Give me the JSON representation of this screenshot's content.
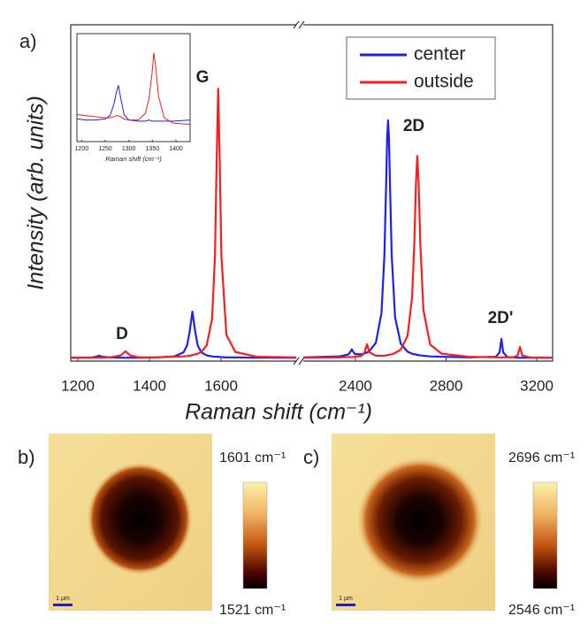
{
  "panel_label": "a)",
  "chart_data": [
    {
      "type": "line",
      "ylabel": "Intensity (arb. units)",
      "xlabel": "Raman shift (cm⁻¹)",
      "xlim": [
        [
          1180,
          1810
        ],
        [
          2170,
          3270
        ]
      ],
      "xticks": [
        1200,
        1400,
        1600,
        2400,
        2800,
        3200
      ],
      "ylim": [
        0,
        100
      ],
      "legend": "top-right",
      "annotations": [
        "D",
        "G",
        "2D",
        "2D'"
      ],
      "x": [
        1180,
        1240,
        1250,
        1259,
        1268,
        1290,
        1320,
        1333,
        1346,
        1370,
        1420,
        1470,
        1495,
        1505,
        1512,
        1520,
        1528,
        1535,
        1545,
        1560,
        1575,
        1583,
        1588,
        1592,
        1596,
        1601,
        1615,
        1640,
        1700,
        1810,
        2170,
        2330,
        2370,
        2378,
        2384,
        2390,
        2398,
        2425,
        2440,
        2446,
        2451,
        2456,
        2462,
        2490,
        2515,
        2528,
        2536,
        2540,
        2544,
        2548,
        2552,
        2560,
        2575,
        2600,
        2630,
        2650,
        2660,
        2667,
        2673,
        2679,
        2686,
        2700,
        2730,
        2780,
        2900,
        3020,
        3036,
        3044,
        3052,
        3070,
        3100,
        3116,
        3126,
        3136,
        3170,
        3270
      ],
      "series": [
        {
          "name": "center",
          "color": "#1f1ff5",
          "values": [
            1.0,
            1.1,
            1.3,
            1.6,
            1.3,
            1.1,
            1.0,
            1.0,
            1.0,
            1.0,
            1.1,
            1.4,
            2.6,
            4.6,
            8.6,
            14.7,
            8.6,
            4.6,
            2.6,
            1.7,
            1.4,
            1.3,
            1.3,
            1.3,
            1.2,
            1.2,
            1.1,
            1.1,
            1.0,
            1.0,
            1.1,
            1.4,
            2.0,
            2.8,
            3.5,
            2.8,
            2.1,
            2.0,
            2.3,
            2.4,
            2.6,
            2.7,
            3.0,
            5.4,
            14.3,
            31.6,
            54,
            66.3,
            71.6,
            66.3,
            54,
            31.6,
            13,
            5.2,
            2.8,
            2.2,
            2.0,
            2.0,
            1.8,
            1.8,
            1.7,
            1.6,
            1.4,
            1.3,
            1.1,
            1.3,
            2.6,
            6.6,
            2.6,
            1.2,
            1.1,
            1.0,
            1.0,
            1.0,
            1.0,
            1.0
          ]
        },
        {
          "name": "outside",
          "color": "#f51f1f",
          "values": [
            1.0,
            1.0,
            1.0,
            1.0,
            1.0,
            1.1,
            1.7,
            2.9,
            1.7,
            1.1,
            1.1,
            1.3,
            1.4,
            1.5,
            1.6,
            1.8,
            2.0,
            2.2,
            2.7,
            4.7,
            12.6,
            31.2,
            61,
            81,
            61,
            31.2,
            7.8,
            2.7,
            1.3,
            1.1,
            1.0,
            1.1,
            1.2,
            1.2,
            1.2,
            1.2,
            1.3,
            1.5,
            2.5,
            3.9,
            5.0,
            3.9,
            2.6,
            1.6,
            1.6,
            1.6,
            1.7,
            1.8,
            1.8,
            1.9,
            1.9,
            2.0,
            2.4,
            3.4,
            7.5,
            18.9,
            35.3,
            52.7,
            61,
            52.7,
            35.3,
            15.2,
            4.9,
            2.2,
            1.3,
            1.1,
            1.1,
            1.1,
            1.1,
            1.1,
            1.2,
            1.7,
            4.2,
            1.7,
            1.1,
            1.0
          ]
        }
      ]
    },
    {
      "type": "line",
      "xlabel": "Raman shift (cm⁻¹)",
      "xlim": [
        1190,
        1430
      ],
      "xticks": [
        1200,
        1250,
        1300,
        1350,
        1400
      ],
      "ylim": [
        0,
        100
      ],
      "x": [
        1190,
        1210,
        1230,
        1250,
        1260,
        1268,
        1274,
        1278,
        1283,
        1290,
        1300,
        1320,
        1335,
        1343,
        1349,
        1353,
        1357,
        1363,
        1375,
        1395,
        1430
      ],
      "series": [
        {
          "name": "center",
          "color": "#1f1ff5",
          "values": [
            21,
            20,
            20,
            21,
            24,
            34,
            46,
            52,
            40,
            25,
            20,
            19,
            19,
            20,
            19,
            19,
            19,
            19,
            19,
            19,
            20
          ]
        },
        {
          "name": "outside",
          "color": "#f51f1f",
          "values": [
            25,
            24,
            23,
            22,
            22,
            23,
            24,
            24,
            23,
            21,
            20,
            20,
            26,
            40,
            62,
            82,
            70,
            42,
            22,
            17,
            16
          ]
        }
      ]
    }
  ],
  "maps": [
    {
      "label": "b)",
      "max_label": "1601 cm⁻¹",
      "min_label": "1521 cm⁻¹",
      "scalebar": "1 μm"
    },
    {
      "label": "c)",
      "max_label": "2696 cm⁻¹",
      "min_label": "2546 cm⁻¹",
      "scalebar": "1 μm"
    }
  ]
}
